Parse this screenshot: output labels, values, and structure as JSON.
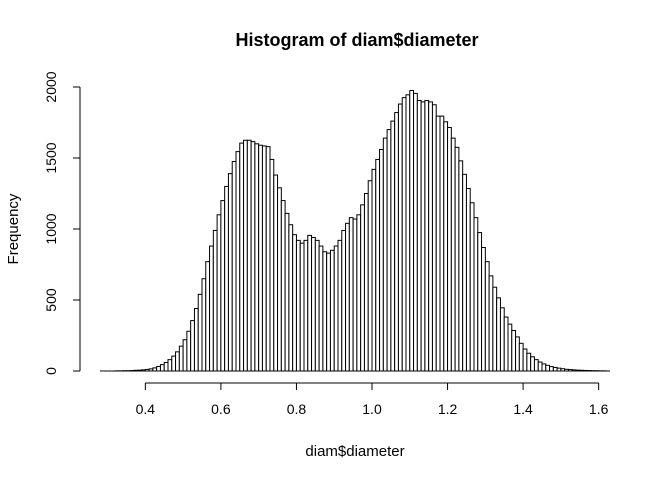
{
  "chart_data": {
    "type": "bar",
    "title": "Histogram of diam$diameter",
    "xlabel": "diam$diameter",
    "ylabel": "Frequency",
    "xlim": [
      0.28,
      1.63
    ],
    "ylim": [
      0,
      2000
    ],
    "x_ticks": [
      0.4,
      0.6,
      0.8,
      1.0,
      1.2,
      1.4,
      1.6
    ],
    "x_tick_labels": [
      "0.4",
      "0.6",
      "0.8",
      "1.0",
      "1.2",
      "1.4",
      "1.6"
    ],
    "y_ticks": [
      0,
      500,
      1000,
      1500,
      2000
    ],
    "y_tick_labels": [
      "0",
      "500",
      "1000",
      "1500",
      "2000"
    ],
    "bin_start": 0.28,
    "bin_width": 0.01,
    "values": [
      0,
      0,
      0,
      0,
      1,
      1,
      2,
      2,
      3,
      5,
      6,
      8,
      11,
      15,
      22,
      32,
      45,
      60,
      80,
      105,
      135,
      175,
      220,
      280,
      355,
      440,
      540,
      650,
      770,
      880,
      990,
      1100,
      1200,
      1300,
      1390,
      1475,
      1545,
      1605,
      1625,
      1625,
      1615,
      1600,
      1590,
      1585,
      1580,
      1490,
      1380,
      1290,
      1200,
      1110,
      1030,
      960,
      920,
      900,
      920,
      955,
      940,
      920,
      880,
      840,
      830,
      850,
      880,
      920,
      990,
      1040,
      1080,
      1070,
      1100,
      1170,
      1250,
      1340,
      1420,
      1490,
      1560,
      1640,
      1700,
      1760,
      1820,
      1880,
      1925,
      1945,
      1975,
      1955,
      1905,
      1895,
      1905,
      1895,
      1875,
      1795,
      1795,
      1755,
      1715,
      1640,
      1575,
      1480,
      1385,
      1285,
      1185,
      1080,
      975,
      870,
      770,
      670,
      590,
      515,
      445,
      380,
      330,
      285,
      240,
      195,
      155,
      125,
      100,
      80,
      63,
      50,
      40,
      31,
      25,
      20,
      16,
      12,
      10,
      8,
      6,
      5,
      4,
      3,
      2,
      2,
      1,
      1,
      0
    ]
  }
}
